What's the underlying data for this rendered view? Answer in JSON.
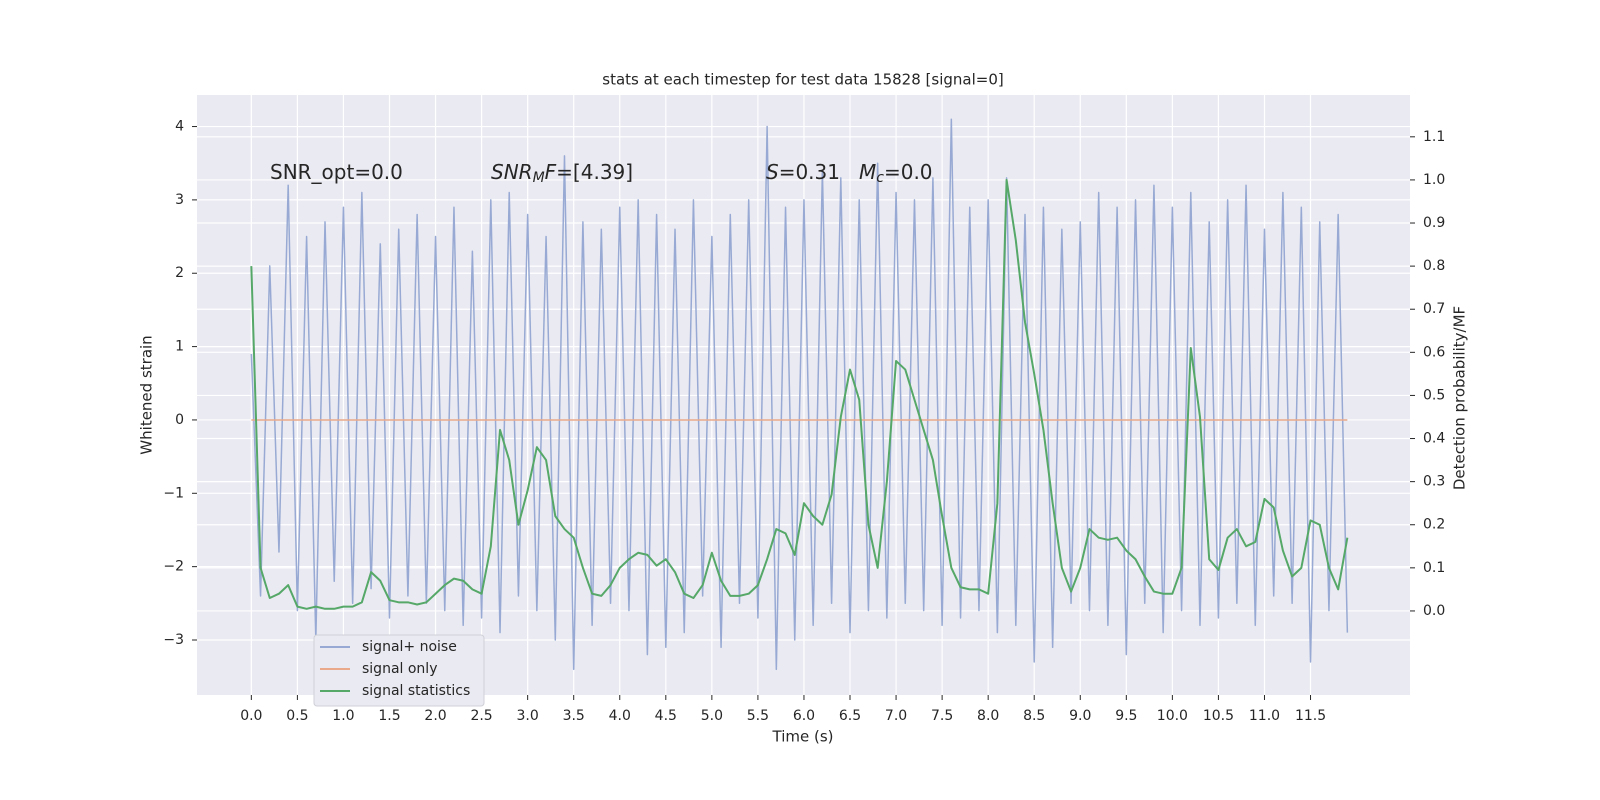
{
  "chart_data": {
    "type": "line",
    "title": "stats at each timestep for test data 15828 [signal=0]",
    "xlabel": "Time (s)",
    "ylabel": "Whitened strain",
    "y2label": "Detection probability/MF",
    "annotations": [
      [
        {
          "text": "SNR_opt=0.0"
        }
      ],
      [
        {
          "text": "SNR",
          "style": "italic"
        },
        {
          "text": "M",
          "style": "sub"
        },
        {
          "text": "F",
          "style": "italic"
        },
        {
          "text": "=[4.39]"
        }
      ],
      [
        {
          "text": "S",
          "style": "italic"
        },
        {
          "text": "=0.31"
        }
      ],
      [
        {
          "text": "M",
          "style": "italic"
        },
        {
          "text": "c",
          "style": "sub"
        },
        {
          "text": "=0.0"
        }
      ]
    ],
    "x": [
      0.0,
      0.1,
      0.2,
      0.3,
      0.4,
      0.5,
      0.6,
      0.7,
      0.8,
      0.9,
      1.0,
      1.1,
      1.2,
      1.3,
      1.4,
      1.5,
      1.6,
      1.7,
      1.8,
      1.9,
      2.0,
      2.1,
      2.2,
      2.3,
      2.4,
      2.5,
      2.6,
      2.7,
      2.8,
      2.9,
      3.0,
      3.1,
      3.2,
      3.3,
      3.4,
      3.5,
      3.6,
      3.7,
      3.8,
      3.9,
      4.0,
      4.1,
      4.2,
      4.3,
      4.4,
      4.5,
      4.6,
      4.7,
      4.8,
      4.9,
      5.0,
      5.1,
      5.2,
      5.3,
      5.4,
      5.5,
      5.6,
      5.7,
      5.8,
      5.9,
      6.0,
      6.1,
      6.2,
      6.3,
      6.4,
      6.5,
      6.6,
      6.7,
      6.8,
      6.9,
      7.0,
      7.1,
      7.2,
      7.3,
      7.4,
      7.5,
      7.6,
      7.7,
      7.8,
      7.9,
      8.0,
      8.1,
      8.2,
      8.3,
      8.4,
      8.5,
      8.6,
      8.7,
      8.8,
      8.9,
      9.0,
      9.1,
      9.2,
      9.3,
      9.4,
      9.5,
      9.6,
      9.7,
      9.8,
      9.9,
      10.0,
      10.1,
      10.2,
      10.3,
      10.4,
      10.5,
      10.6,
      10.7,
      10.8,
      10.9,
      11.0,
      11.1,
      11.2,
      11.3,
      11.4,
      11.5,
      11.6,
      11.7,
      11.8,
      11.9
    ],
    "series": [
      {
        "name": "signal+ noise",
        "color": "#98aad3",
        "values": [
          0.9,
          -2.4,
          2.1,
          -1.8,
          3.2,
          -2.6,
          2.5,
          -3.0,
          2.7,
          -2.2,
          2.9,
          -2.5,
          3.1,
          -2.3,
          2.4,
          -2.7,
          2.6,
          -2.4,
          2.8,
          -2.5,
          2.5,
          -2.6,
          2.9,
          -2.8,
          2.3,
          -2.7,
          3.0,
          -2.9,
          3.1,
          -2.4,
          2.8,
          -2.6,
          2.5,
          -3.0,
          3.6,
          -3.4,
          2.7,
          -2.8,
          2.6,
          -2.5,
          2.9,
          -2.6,
          3.0,
          -3.2,
          2.8,
          -3.1,
          2.6,
          -2.9,
          3.0,
          -2.4,
          2.5,
          -3.1,
          2.8,
          -2.5,
          3.0,
          -2.7,
          4.0,
          -3.4,
          2.9,
          -3.0,
          3.0,
          -2.8,
          3.4,
          -2.5,
          3.3,
          -2.9,
          3.0,
          -2.6,
          3.5,
          -2.7,
          3.1,
          -2.5,
          3.0,
          -2.6,
          3.3,
          -2.8,
          4.1,
          -2.7,
          2.9,
          -2.6,
          3.0,
          -2.9,
          3.3,
          -2.8,
          2.8,
          -3.3,
          2.9,
          -3.1,
          2.6,
          -2.5,
          2.7,
          -2.6,
          3.1,
          -2.8,
          2.9,
          -3.2,
          3.0,
          -2.5,
          3.2,
          -2.9,
          2.9,
          -2.6,
          3.1,
          -2.8,
          2.7,
          -2.7,
          3.0,
          -2.5,
          3.2,
          -2.8,
          2.6,
          -2.4,
          3.1,
          -2.5,
          2.9,
          -3.3,
          2.7,
          -2.6,
          2.8,
          -2.9
        ]
      },
      {
        "name": "signal only",
        "color": "#e9a98a",
        "values": [
          0,
          0,
          0,
          0,
          0,
          0,
          0,
          0,
          0,
          0,
          0,
          0,
          0,
          0,
          0,
          0,
          0,
          0,
          0,
          0,
          0,
          0,
          0,
          0,
          0,
          0,
          0,
          0,
          0,
          0,
          0,
          0,
          0,
          0,
          0,
          0,
          0,
          0,
          0,
          0,
          0,
          0,
          0,
          0,
          0,
          0,
          0,
          0,
          0,
          0,
          0,
          0,
          0,
          0,
          0,
          0,
          0,
          0,
          0,
          0,
          0,
          0,
          0,
          0,
          0,
          0,
          0,
          0,
          0,
          0,
          0,
          0,
          0,
          0,
          0,
          0,
          0,
          0,
          0,
          0,
          0,
          0,
          0,
          0,
          0,
          0,
          0,
          0,
          0,
          0,
          0,
          0,
          0,
          0,
          0,
          0,
          0,
          0,
          0,
          0,
          0,
          0,
          0,
          0,
          0,
          0,
          0,
          0,
          0,
          0,
          0,
          0,
          0,
          0,
          0,
          0,
          0,
          0,
          0,
          0
        ]
      },
      {
        "name": "signal statistics",
        "color": "#55a868",
        "axis": "y2",
        "values": [
          0.8,
          0.1,
          0.03,
          0.04,
          0.06,
          0.01,
          0.005,
          0.01,
          0.005,
          0.005,
          0.01,
          0.01,
          0.02,
          0.09,
          0.07,
          0.025,
          0.02,
          0.02,
          0.015,
          0.02,
          0.04,
          0.06,
          0.075,
          0.07,
          0.05,
          0.04,
          0.15,
          0.42,
          0.35,
          0.2,
          0.28,
          0.38,
          0.35,
          0.22,
          0.19,
          0.17,
          0.1,
          0.04,
          0.035,
          0.06,
          0.1,
          0.12,
          0.135,
          0.13,
          0.105,
          0.12,
          0.09,
          0.04,
          0.03,
          0.06,
          0.135,
          0.07,
          0.035,
          0.035,
          0.04,
          0.06,
          0.12,
          0.19,
          0.18,
          0.13,
          0.25,
          0.22,
          0.2,
          0.27,
          0.45,
          0.56,
          0.49,
          0.2,
          0.1,
          0.3,
          0.58,
          0.56,
          0.49,
          0.42,
          0.35,
          0.22,
          0.1,
          0.055,
          0.05,
          0.05,
          0.04,
          0.25,
          1.0,
          0.86,
          0.67,
          0.55,
          0.42,
          0.25,
          0.1,
          0.045,
          0.1,
          0.19,
          0.17,
          0.165,
          0.17,
          0.14,
          0.12,
          0.08,
          0.045,
          0.04,
          0.04,
          0.1,
          0.61,
          0.45,
          0.12,
          0.095,
          0.17,
          0.19,
          0.15,
          0.16,
          0.26,
          0.24,
          0.14,
          0.08,
          0.1,
          0.21,
          0.2,
          0.1,
          0.05,
          0.17
        ]
      }
    ],
    "xlim": [
      -0.59,
      12.58
    ],
    "xticks": [
      {
        "value": 0,
        "label": "0.0"
      },
      0.5,
      {
        "value": 1,
        "label": "1.0"
      },
      1.5,
      {
        "value": 2,
        "label": "2.0"
      },
      2.5,
      {
        "value": 3,
        "label": "3.0"
      },
      3.5,
      {
        "value": 4,
        "label": "4.0"
      },
      4.5,
      {
        "value": 5,
        "label": "5.0"
      },
      5.5,
      {
        "value": 6,
        "label": "6.0"
      },
      6.5,
      {
        "value": 7,
        "label": "7.0"
      },
      7.5,
      {
        "value": 8,
        "label": "8.0"
      },
      8.5,
      {
        "value": 9,
        "label": "9.0"
      },
      9.5,
      {
        "value": 10,
        "label": "10.0"
      },
      10.5,
      {
        "value": 11,
        "label": "11.0"
      },
      11.5
    ],
    "ylim": [
      -3.75,
      4.43
    ],
    "yticks": [
      {
        "value": -3,
        "label": "−3"
      },
      {
        "value": -2,
        "label": "−2"
      },
      {
        "value": -1,
        "label": "−1"
      },
      0,
      1,
      2,
      3,
      4
    ],
    "y2lim": [
      -0.195,
      1.197
    ],
    "y2ticks": [
      {
        "value": 0,
        "label": "0.0"
      },
      0.1,
      0.2,
      0.3,
      0.4,
      0.5,
      0.6,
      0.7,
      0.8,
      0.9,
      {
        "value": 1,
        "label": "1.0"
      },
      1.1
    ],
    "grid": true,
    "legend": "lower left"
  }
}
